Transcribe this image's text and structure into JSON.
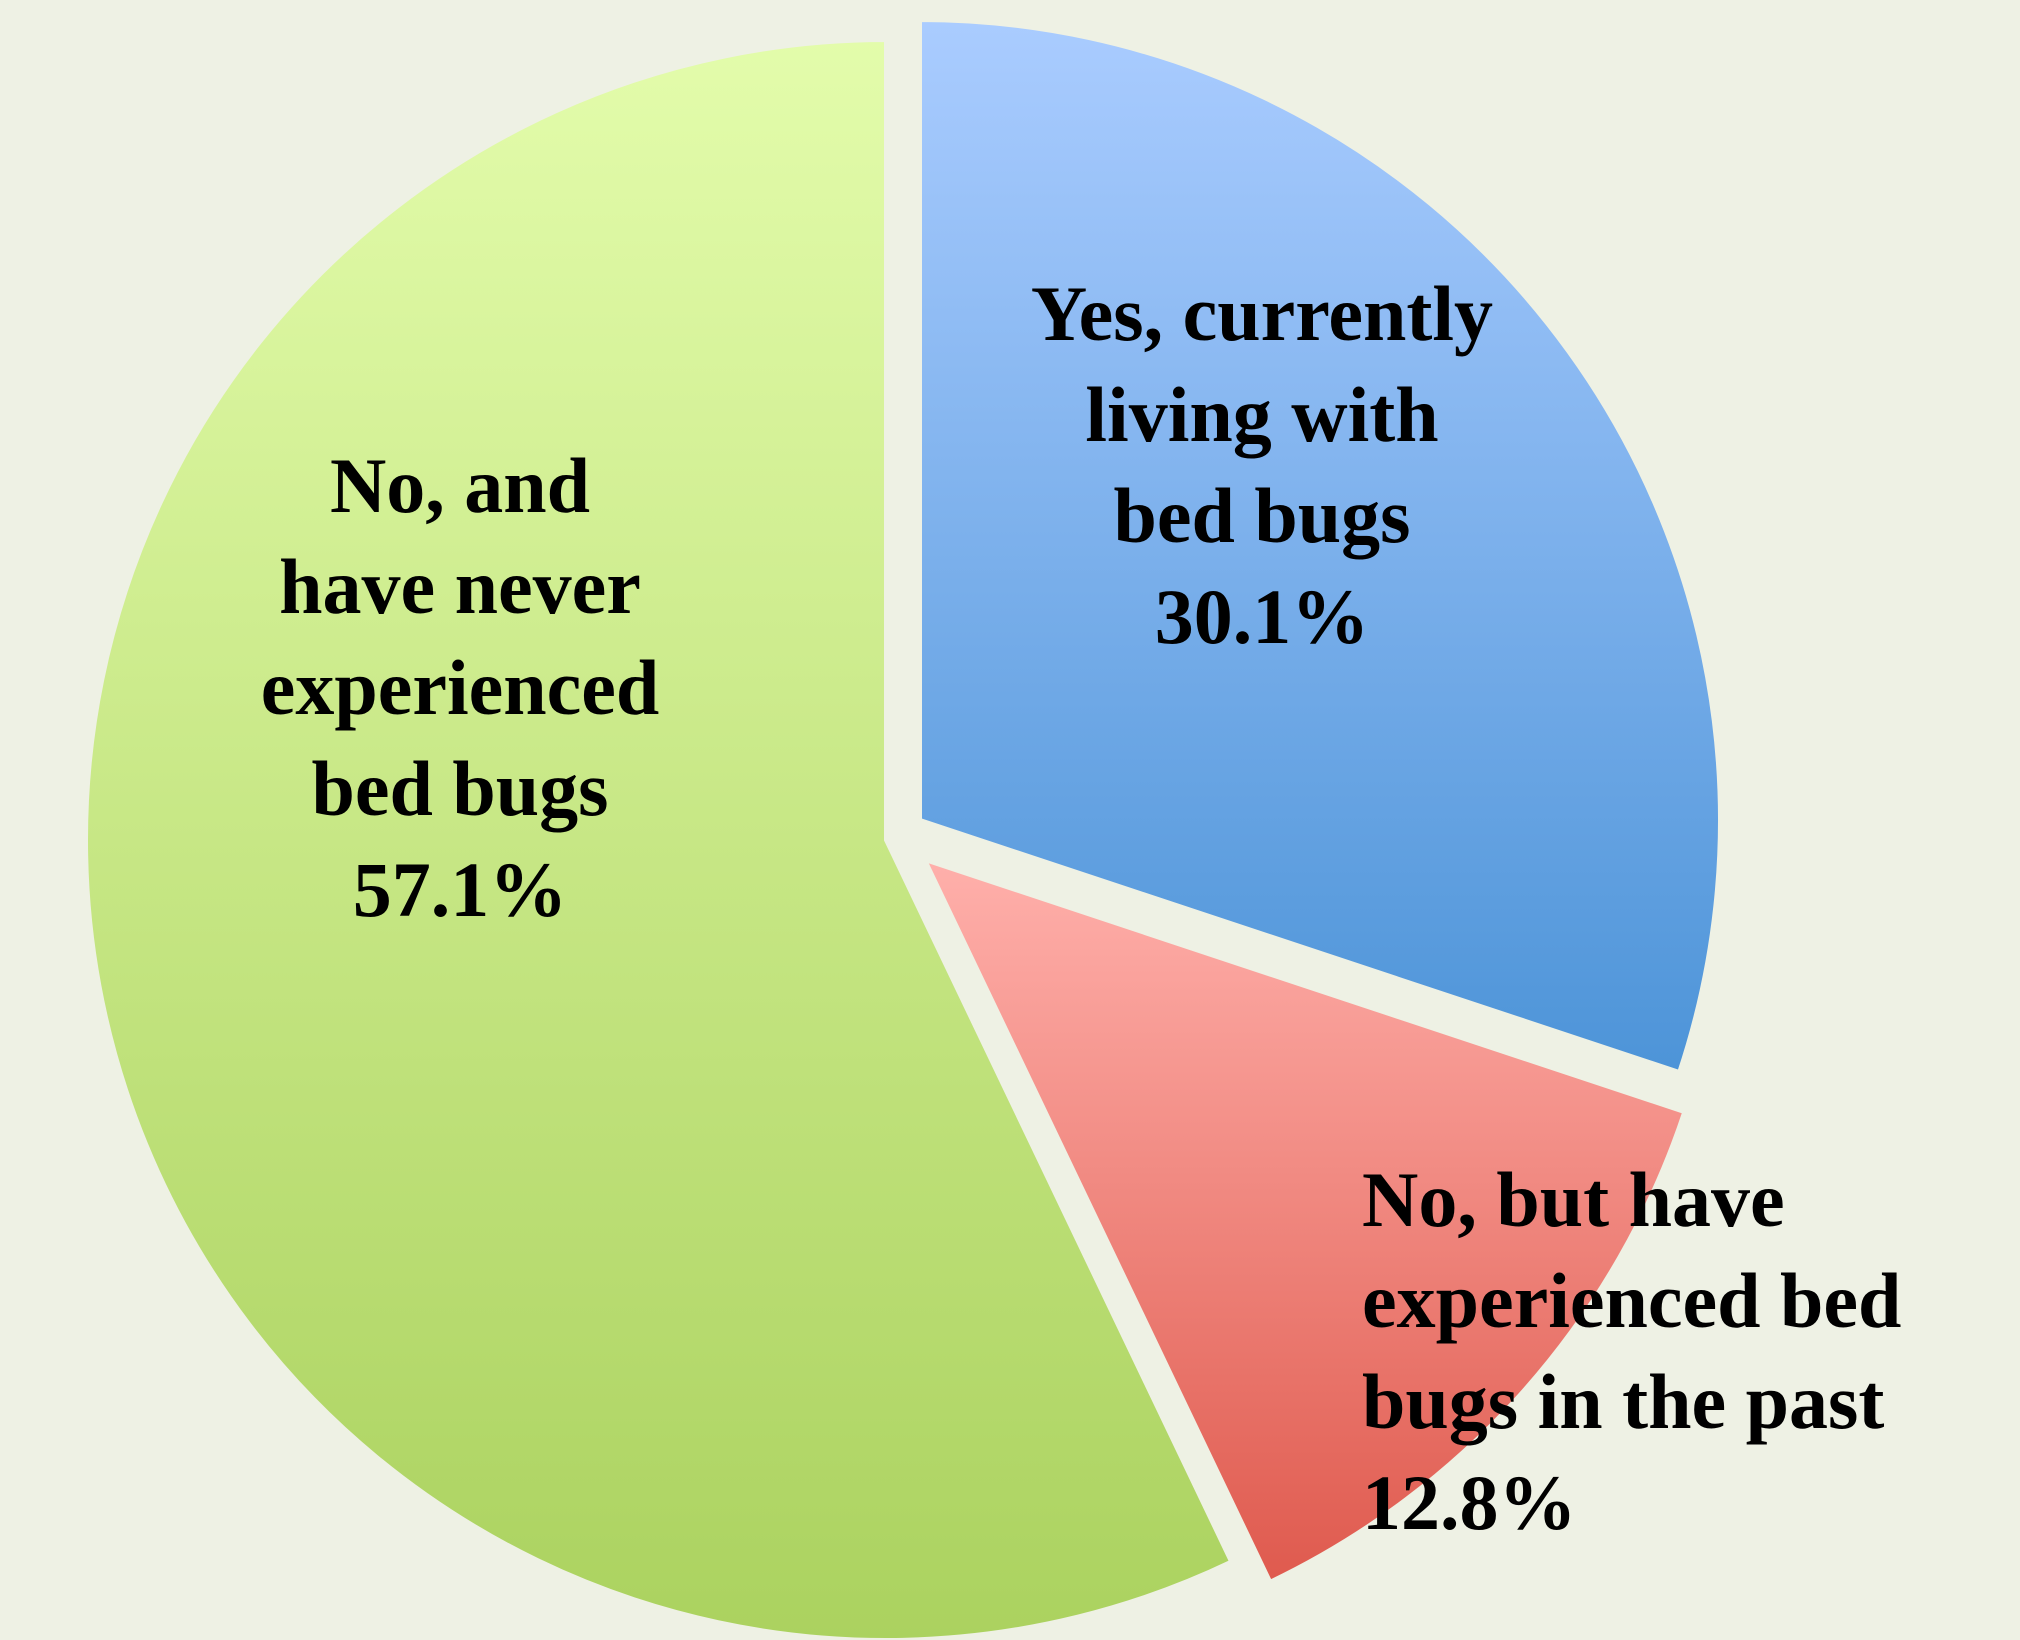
{
  "chart_data": {
    "type": "pie",
    "title": "",
    "start": "12 o'clock",
    "direction": "clockwise",
    "exploded": true,
    "slices": [
      {
        "label_lines": [
          "Yes, currently",
          "living with",
          "bed bugs"
        ],
        "value_label": "30.1%",
        "value": 30.1,
        "color_top": "#aaccff",
        "color_bottom": "#4d94d8"
      },
      {
        "label_lines": [
          "No, but have",
          "experienced bed",
          "bugs in the past"
        ],
        "value_label": "12.8%",
        "value": 12.8,
        "color_top": "#ffb0ab",
        "color_bottom": "#df5a4e"
      },
      {
        "label_lines": [
          "No, and",
          "have never",
          "experienced",
          "bed bugs"
        ],
        "value_label": "57.1%",
        "value": 57.1,
        "color_top": "#e3fcab",
        "color_bottom": "#abd25f"
      }
    ]
  }
}
